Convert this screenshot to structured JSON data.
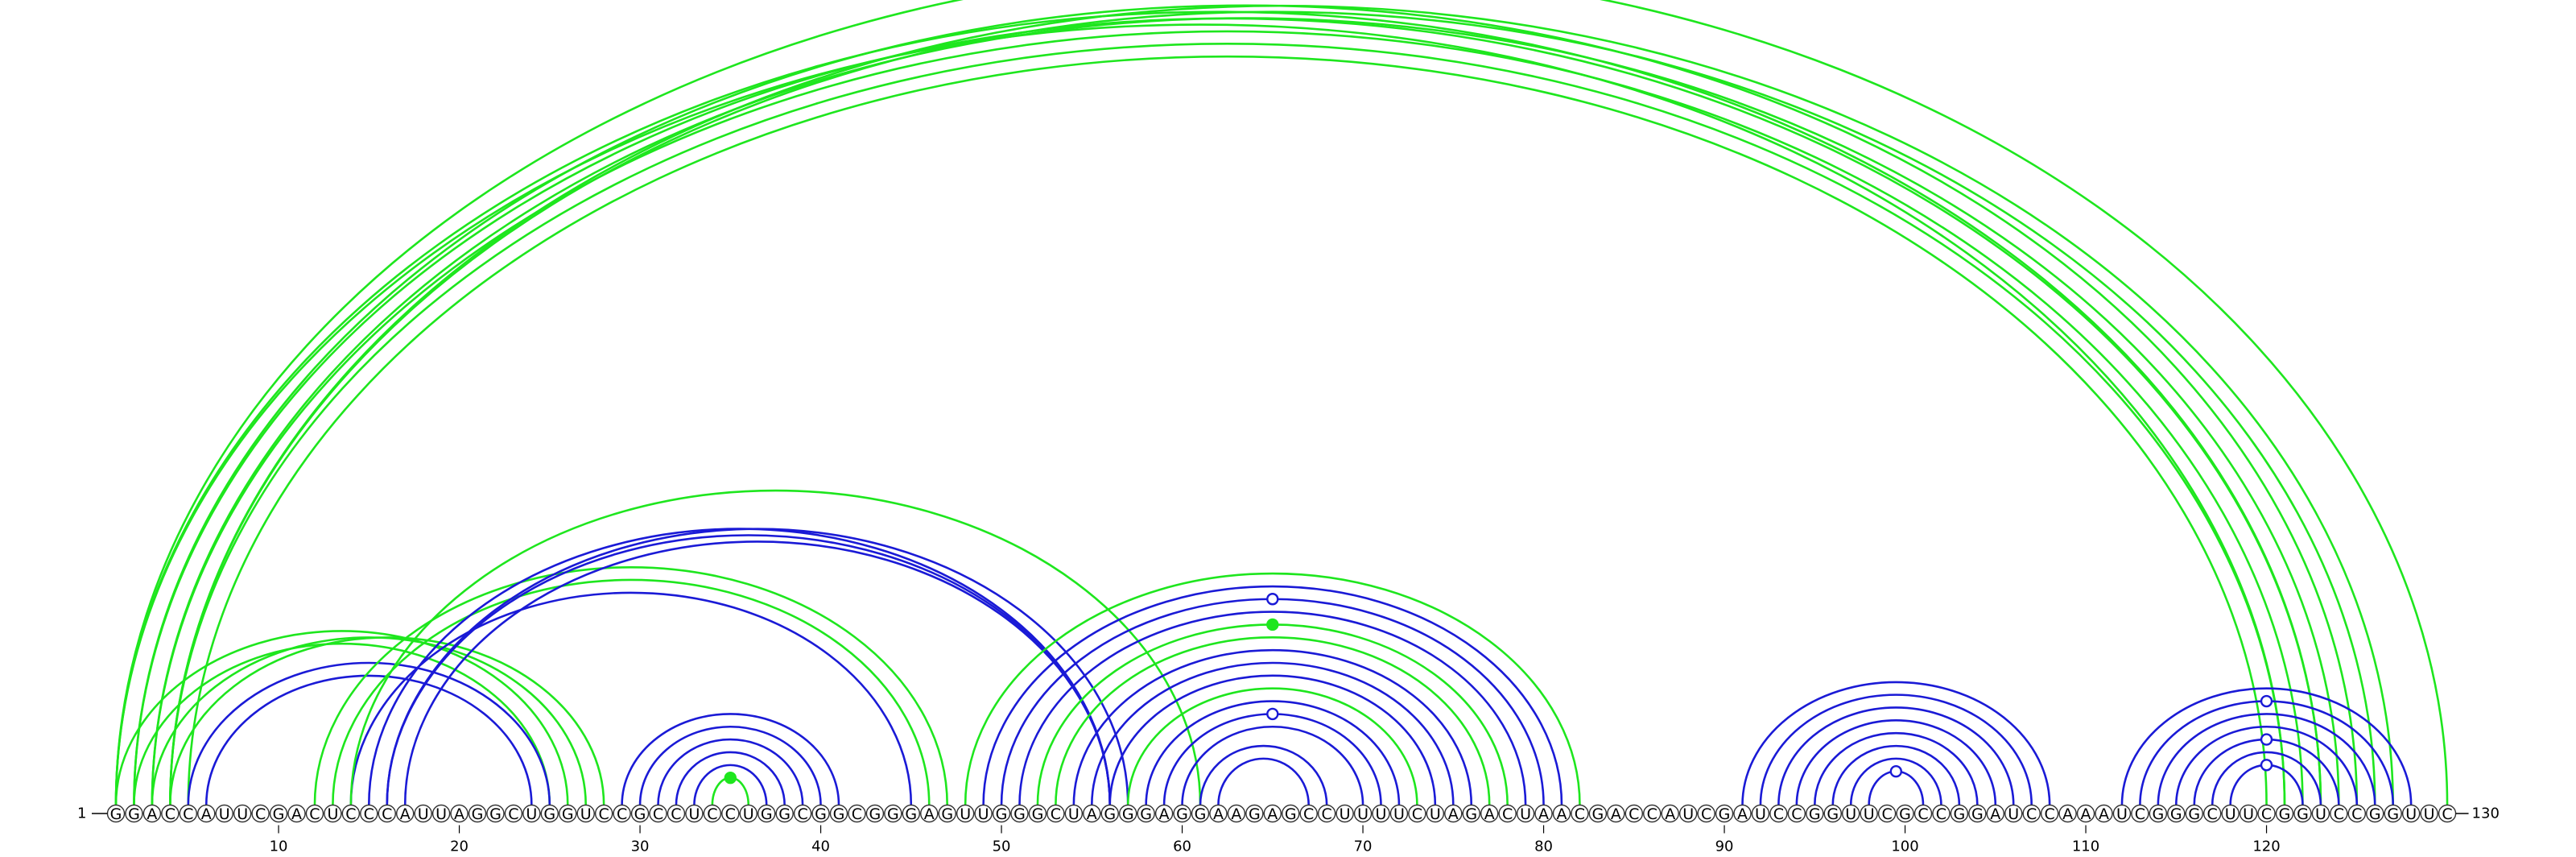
{
  "sequence": "GGACCAUUCGACUCCCAUUAGGCUGGUCCGCCUCCUGGCGGCGGGAGUUGGGCUAGGGAGGAAGAGCCUUUUCUAGACUAACGACCAUCGAUCCGGUUCGCCGGAUCCAAAUCGGGCUUCGGUCCGGUUC",
  "start_label": "1",
  "end_label": "130",
  "tick_positions": [
    10,
    20,
    30,
    40,
    50,
    60,
    70,
    80,
    90,
    100,
    110,
    120
  ],
  "colors": {
    "green": "#1ee61e",
    "blue": "#1a1ad6"
  },
  "arcs": [
    {
      "i": 1,
      "j": 121,
      "color": "green"
    },
    {
      "i": 1,
      "j": 123,
      "color": "green"
    },
    {
      "i": 1,
      "j": 130,
      "color": "green"
    },
    {
      "i": 2,
      "j": 123,
      "color": "green"
    },
    {
      "i": 2,
      "j": 125,
      "color": "green"
    },
    {
      "i": 3,
      "j": 122,
      "color": "green"
    },
    {
      "i": 3,
      "j": 124,
      "color": "green"
    },
    {
      "i": 4,
      "j": 121,
      "color": "green"
    },
    {
      "i": 4,
      "j": 126,
      "color": "green"
    },
    {
      "i": 4,
      "j": 127,
      "color": "green"
    },
    {
      "i": 5,
      "j": 120,
      "color": "green"
    },
    {
      "i": 1,
      "j": 26,
      "color": "green"
    },
    {
      "i": 2,
      "j": 25,
      "color": "green"
    },
    {
      "i": 3,
      "j": 27,
      "color": "green"
    },
    {
      "i": 4,
      "j": 28,
      "color": "green"
    },
    {
      "i": 5,
      "j": 25,
      "color": "blue"
    },
    {
      "i": 6,
      "j": 24,
      "color": "blue"
    },
    {
      "i": 12,
      "j": 47,
      "color": "green"
    },
    {
      "i": 13,
      "j": 46,
      "color": "green"
    },
    {
      "i": 14,
      "j": 45,
      "color": "blue"
    },
    {
      "i": 14,
      "j": 61,
      "color": "green"
    },
    {
      "i": 15,
      "j": 56,
      "color": "blue"
    },
    {
      "i": 16,
      "j": 57,
      "color": "blue"
    },
    {
      "i": 16,
      "j": 56,
      "color": "blue"
    },
    {
      "i": 17,
      "j": 56,
      "color": "blue"
    },
    {
      "i": 29,
      "j": 41,
      "color": "blue"
    },
    {
      "i": 30,
      "j": 40,
      "color": "blue"
    },
    {
      "i": 31,
      "j": 39,
      "color": "blue"
    },
    {
      "i": 32,
      "j": 38,
      "color": "blue"
    },
    {
      "i": 33,
      "j": 37,
      "color": "blue"
    },
    {
      "i": 34,
      "j": 36,
      "color": "green",
      "marker": "filled"
    },
    {
      "i": 48,
      "j": 82,
      "color": "green"
    },
    {
      "i": 49,
      "j": 81,
      "color": "blue"
    },
    {
      "i": 50,
      "j": 80,
      "color": "blue",
      "marker": "open"
    },
    {
      "i": 51,
      "j": 79,
      "color": "blue"
    },
    {
      "i": 52,
      "j": 78,
      "color": "green",
      "marker": "filled"
    },
    {
      "i": 53,
      "j": 77,
      "color": "green"
    },
    {
      "i": 54,
      "j": 76,
      "color": "blue"
    },
    {
      "i": 55,
      "j": 75,
      "color": "blue"
    },
    {
      "i": 56,
      "j": 74,
      "color": "blue"
    },
    {
      "i": 57,
      "j": 73,
      "color": "green"
    },
    {
      "i": 58,
      "j": 72,
      "color": "blue"
    },
    {
      "i": 59,
      "j": 71,
      "color": "blue",
      "marker": "open"
    },
    {
      "i": 60,
      "j": 70,
      "color": "blue"
    },
    {
      "i": 61,
      "j": 68,
      "color": "blue"
    },
    {
      "i": 62,
      "j": 67,
      "color": "blue"
    },
    {
      "i": 91,
      "j": 108,
      "color": "blue"
    },
    {
      "i": 92,
      "j": 107,
      "color": "blue"
    },
    {
      "i": 93,
      "j": 106,
      "color": "blue"
    },
    {
      "i": 94,
      "j": 105,
      "color": "blue"
    },
    {
      "i": 95,
      "j": 104,
      "color": "blue"
    },
    {
      "i": 96,
      "j": 103,
      "color": "blue"
    },
    {
      "i": 97,
      "j": 102,
      "color": "blue"
    },
    {
      "i": 98,
      "j": 101,
      "color": "blue",
      "marker": "open"
    },
    {
      "i": 112,
      "j": 128,
      "color": "blue"
    },
    {
      "i": 113,
      "j": 127,
      "color": "blue",
      "marker": "open"
    },
    {
      "i": 114,
      "j": 126,
      "color": "blue"
    },
    {
      "i": 115,
      "j": 125,
      "color": "blue"
    },
    {
      "i": 116,
      "j": 124,
      "color": "blue",
      "marker": "open"
    },
    {
      "i": 117,
      "j": 123,
      "color": "blue"
    },
    {
      "i": 118,
      "j": 122,
      "color": "blue",
      "marker": "open"
    }
  ]
}
